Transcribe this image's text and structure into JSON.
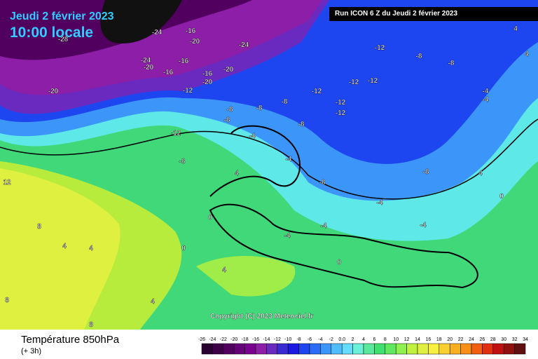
{
  "header": {
    "date": "Jeudi 2 février 2023",
    "time": "10:00 locale",
    "run": "Run ICON 6 Z du Jeudi 2 février 2023"
  },
  "copyright": "Copyright (C) 2023 Meteociel.fr",
  "footer": {
    "title": "Température 850hPa",
    "step": "(+ 3h)"
  },
  "scale": {
    "labels": [
      "-26",
      "-24",
      "-22",
      "-20",
      "-18",
      "-16",
      "-14",
      "-12",
      "-10",
      "-8",
      "-6",
      "-4",
      "-2",
      "0.0",
      "2",
      "4",
      "6",
      "8",
      "10",
      "12",
      "14",
      "16",
      "18",
      "20",
      "22",
      "24",
      "26",
      "28",
      "30",
      "32",
      "34"
    ],
    "colors": [
      "#2a0030",
      "#3d0048",
      "#520060",
      "#660078",
      "#7a0090",
      "#8c1ea8",
      "#6a2ac0",
      "#3a2ad0",
      "#1a1ae0",
      "#1e46f0",
      "#2a6cf8",
      "#3c96fa",
      "#50bcfc",
      "#66dcfc",
      "#6cf0d8",
      "#5ae89c",
      "#40e070",
      "#60e860",
      "#90f050",
      "#c0f040",
      "#e0f040",
      "#f8f040",
      "#f8d030",
      "#f8b020",
      "#f89018",
      "#f06010",
      "#e03010",
      "#c01010",
      "#901010",
      "#601010"
    ]
  },
  "map_labels": [
    "-28",
    "-24",
    "-16",
    "-20",
    "-24",
    "-20",
    "-16",
    "-16",
    "-20",
    "-16",
    "-20",
    "-12",
    "-24",
    "-20",
    "-12",
    "-8",
    "-8",
    "-12",
    "-12",
    "-12",
    "-12",
    "-12",
    "-8",
    "-8",
    "-8",
    "-8",
    "-12",
    "-8",
    "-4",
    "-8",
    "-4",
    "-8",
    "-8",
    "-4",
    "-4",
    "-4",
    "-4",
    "0",
    "0",
    "4",
    "4",
    "4",
    "8",
    "12",
    "8",
    "8",
    "-4",
    "-4",
    "4",
    "4",
    "0",
    "4",
    "4",
    "4",
    "0"
  ]
}
